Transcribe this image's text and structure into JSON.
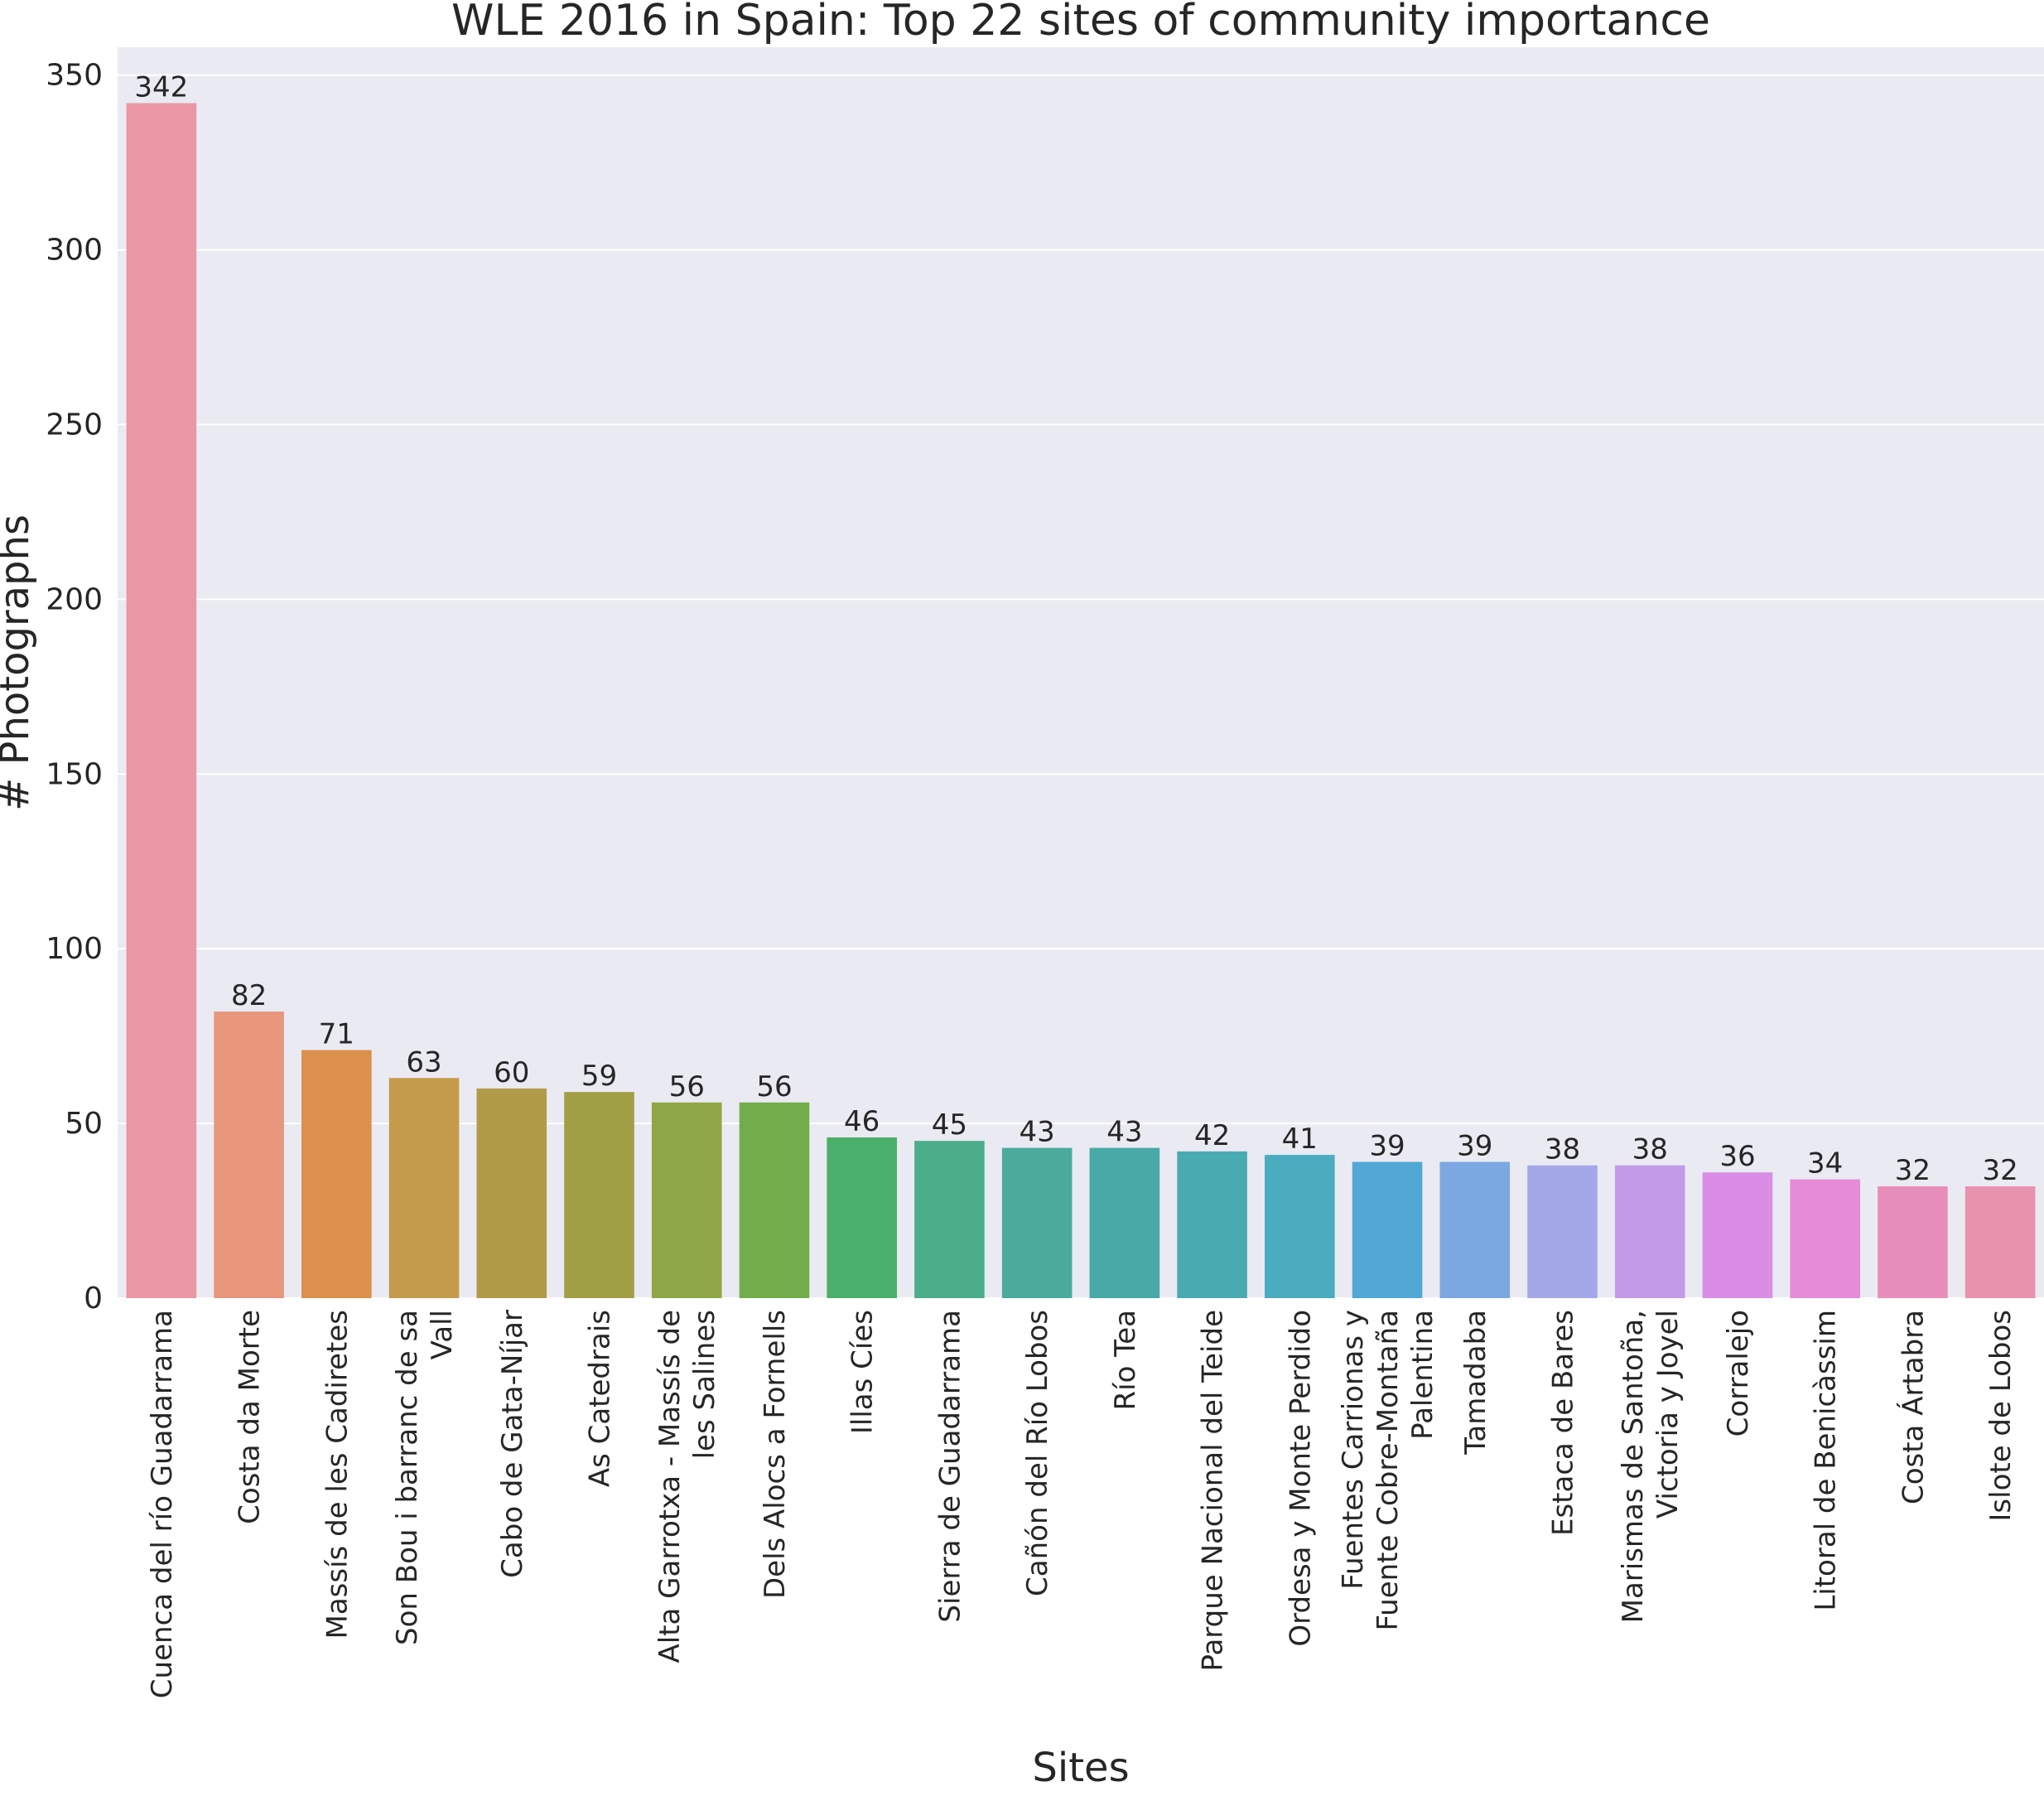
{
  "chart_data": {
    "type": "bar",
    "title": "WLE 2016 in Spain: Top 22 sites of community importance",
    "xlabel": "Sites",
    "ylabel": "# Photographs",
    "ylim": [
      0,
      358
    ],
    "yticks": [
      0,
      50,
      100,
      150,
      200,
      250,
      300,
      350
    ],
    "grid": true,
    "background": "#eaeaf2",
    "categories": [
      [
        "Cuenca del río Guadarrama"
      ],
      [
        "Costa da Morte"
      ],
      [
        "Massís de les Cadiretes"
      ],
      [
        "Son Bou i barranc de sa",
        "Vall"
      ],
      [
        "Cabo de Gata-Níjar"
      ],
      [
        "As Catedrais"
      ],
      [
        "Alta Garrotxa - Massís de",
        "les Salines"
      ],
      [
        "Dels Alocs a Fornells"
      ],
      [
        "Illas Cíes"
      ],
      [
        "Sierra de Guadarrama"
      ],
      [
        "Cañón del Río Lobos"
      ],
      [
        "Río Tea"
      ],
      [
        "Parque Nacional del Teide"
      ],
      [
        "Ordesa y Monte Perdido"
      ],
      [
        "Fuentes Carrionas y",
        "Fuente Cobre-Montaña",
        "Palentina"
      ],
      [
        "Tamadaba"
      ],
      [
        "Estaca de Bares"
      ],
      [
        "Marismas de Santoña,",
        "Victoria y Joyel"
      ],
      [
        "Corralejo"
      ],
      [
        "Litoral de Benicàssim"
      ],
      [
        "Costa Ártabra"
      ],
      [
        "Islote de Lobos"
      ]
    ],
    "values": [
      342,
      82,
      71,
      63,
      60,
      59,
      56,
      56,
      46,
      45,
      43,
      43,
      42,
      41,
      39,
      39,
      38,
      38,
      36,
      34,
      32,
      32
    ],
    "colors": [
      "#eb96a4",
      "#e8967c",
      "#db904b",
      "#c39b4b",
      "#b29b48",
      "#a19f45",
      "#8ea645",
      "#73ad4b",
      "#4aaf6b",
      "#4bad89",
      "#4aab9d",
      "#48a9a6",
      "#4aaab1",
      "#4bacc0",
      "#51a8d5",
      "#7ca8e2",
      "#a5a8e8",
      "#c29ae8",
      "#d98de4",
      "#e68bd6",
      "#e88eba",
      "#e892ad"
    ]
  }
}
